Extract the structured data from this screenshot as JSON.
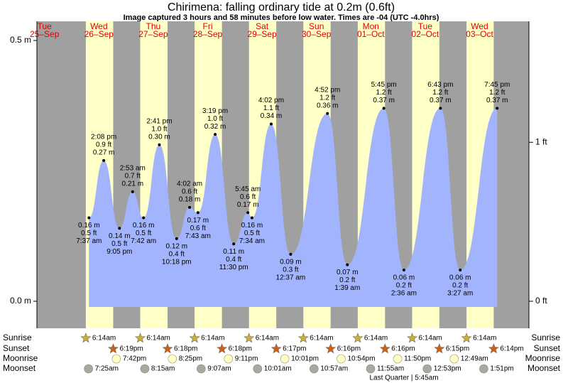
{
  "chart_data": {
    "type": "tide",
    "title": "Chirimena: falling  ordinary tide at 0.2m (0.6ft)",
    "subtitle": "Image captured 3 hours and 58 minutes before low water. Times are -04 (UTC -4.0hrs)",
    "ylim": [
      -0.0518,
      0.5368
    ],
    "yticks": [
      {
        "value": 0,
        "label": "0.0 m"
      },
      {
        "value": 0.5,
        "label": "0.5 m"
      }
    ],
    "y2lim": [
      -0.17,
      1.761
    ],
    "y2ticks": [
      {
        "value": 0,
        "label": "0 ft"
      },
      {
        "value": 1,
        "label": "1 ft"
      }
    ],
    "colors": {
      "night": "#a0a0a0",
      "day": "#ffffc8",
      "water": "#a3b4ff"
    },
    "row_labels": [
      "Sunrise",
      "Sunset",
      "Moonrise",
      "Moonset"
    ],
    "moon_phase": "Last Quarter | 5:45am",
    "days": [
      {
        "day": "Tue",
        "date": "25–Sep",
        "sunrise": null,
        "sunset": null,
        "moonrise": null,
        "moonset": null,
        "tides": []
      },
      {
        "day": "Wed",
        "date": "26–Sep",
        "sunrise": "6:14am",
        "sunset": "6:19pm",
        "moonrise": "7:42pm",
        "moonset": "7:25am",
        "tides": [
          {
            "time": "7:37 am",
            "value": 0.16,
            "value_label": "0.16 m",
            "ft": "0.5 ft"
          },
          {
            "time": "2:08 pm",
            "value": 0.27,
            "value_label": "0.27 m",
            "ft": "0.9 ft"
          },
          {
            "time": "9:05 pm",
            "value": 0.14,
            "value_label": "0.14 m",
            "ft": "0.5 ft"
          }
        ]
      },
      {
        "day": "Thu",
        "date": "27–Sep",
        "sunrise": "6:14am",
        "sunset": "6:18pm",
        "moonrise": "8:25pm",
        "moonset": "8:15am",
        "tides": [
          {
            "time": "2:53 am",
            "value": 0.21,
            "value_label": "0.21 m",
            "ft": "0.7 ft"
          },
          {
            "time": "7:42 am",
            "value": 0.16,
            "value_label": "0.16 m",
            "ft": "0.5 ft"
          },
          {
            "time": "2:41 pm",
            "value": 0.3,
            "value_label": "0.30 m",
            "ft": "1.0 ft"
          },
          {
            "time": "10:18 pm",
            "value": 0.12,
            "value_label": "0.12 m",
            "ft": "0.4 ft"
          }
        ]
      },
      {
        "day": "Fri",
        "date": "28–Sep",
        "sunrise": "6:14am",
        "sunset": "6:18pm",
        "moonrise": "9:11pm",
        "moonset": "9:07am",
        "tides": [
          {
            "time": "4:02 am",
            "value": 0.18,
            "value_label": "0.18 m",
            "ft": "0.6 ft"
          },
          {
            "time": "7:43 am",
            "value": 0.17,
            "value_label": "0.17 m",
            "ft": "0.6 ft"
          },
          {
            "time": "3:19 pm",
            "value": 0.32,
            "value_label": "0.32 m",
            "ft": "1.0 ft"
          },
          {
            "time": "11:30 pm",
            "value": 0.11,
            "value_label": "0.11 m",
            "ft": "0.4 ft"
          }
        ]
      },
      {
        "day": "Sat",
        "date": "29–Sep",
        "sunrise": "6:14am",
        "sunset": "6:17pm",
        "moonrise": "10:01pm",
        "moonset": "10:01am",
        "tides": [
          {
            "time": "5:45 am",
            "value": 0.17,
            "value_label": "0.17 m",
            "ft": "0.6 ft"
          },
          {
            "time": "7:34 am",
            "value": 0.16,
            "value_label": "0.16 m",
            "ft": "0.5 ft"
          },
          {
            "time": "4:02 pm",
            "value": 0.34,
            "value_label": "0.34 m",
            "ft": "1.1 ft"
          }
        ]
      },
      {
        "day": "Sun",
        "date": "30–Sep",
        "sunrise": "6:14am",
        "sunset": "6:16pm",
        "moonrise": "10:54pm",
        "moonset": "10:57am",
        "tides": [
          {
            "time": "12:37 am",
            "value": 0.09,
            "value_label": "0.09 m",
            "ft": "0.3 ft"
          },
          {
            "time": "4:52 pm",
            "value": 0.36,
            "value_label": "0.36 m",
            "ft": "1.2 ft"
          }
        ]
      },
      {
        "day": "Mon",
        "date": "01–Oct",
        "sunrise": "6:14am",
        "sunset": "6:16pm",
        "moonrise": "11:50pm",
        "moonset": "11:55am",
        "tides": [
          {
            "time": "1:39 am",
            "value": 0.07,
            "value_label": "0.07 m",
            "ft": "0.2 ft"
          },
          {
            "time": "5:45 pm",
            "value": 0.37,
            "value_label": "0.37 m",
            "ft": "1.2 ft"
          }
        ]
      },
      {
        "day": "Tue",
        "date": "02–Oct",
        "sunrise": "6:14am",
        "sunset": "6:15pm",
        "moonrise": null,
        "moonset": "12:53pm",
        "tides": [
          {
            "time": "2:36 am",
            "value": 0.06,
            "value_label": "0.06 m",
            "ft": "0.2 ft"
          },
          {
            "time": "6:43 pm",
            "value": 0.37,
            "value_label": "0.37 m",
            "ft": "1.2 ft"
          }
        ]
      },
      {
        "day": "Wed",
        "date": "03–Oct",
        "sunrise": "6:14am",
        "sunset": "6:14pm",
        "moonrise": "12:49am",
        "moonset": "1:51pm",
        "tides": [
          {
            "time": "3:27 am",
            "value": 0.06,
            "value_label": "0.06 m",
            "ft": "0.2 ft"
          },
          {
            "time": "7:45 pm",
            "value": 0.37,
            "value_label": "0.37 m",
            "ft": "1.2 ft"
          }
        ]
      }
    ]
  }
}
